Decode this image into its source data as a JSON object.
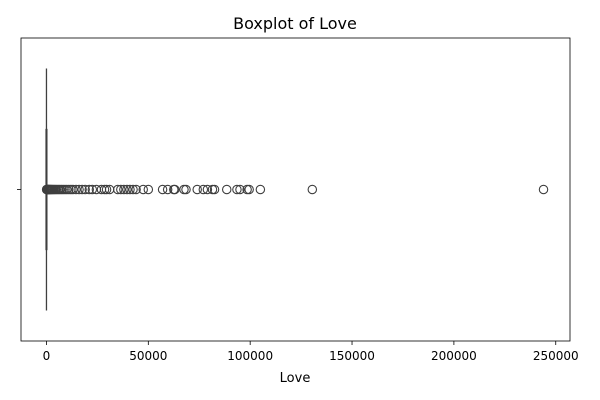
{
  "chart_data": {
    "type": "boxplot",
    "title": "Boxplot of Love",
    "xlabel": "Love",
    "ylabel": "",
    "orientation": "horizontal",
    "xlim": [
      -12500,
      257000
    ],
    "x_ticks": [
      0,
      50000,
      100000,
      150000,
      200000,
      250000
    ],
    "x_tick_labels": [
      "0",
      "50000",
      "100000",
      "150000",
      "200000",
      "250000"
    ],
    "grid": false,
    "colors": {
      "box_edge": "#3f3f3f",
      "box_fill": "#1f77b4",
      "frame": "#000000"
    },
    "summary": {
      "min": 0,
      "q1": 0,
      "median": 0,
      "q3": 0,
      "whisker_low": 0,
      "whisker_high": 0
    },
    "outliers": [
      80,
      150,
      250,
      400,
      550,
      700,
      900,
      1100,
      1300,
      1600,
      1900,
      2200,
      2600,
      3000,
      3500,
      4000,
      4600,
      5200,
      5900,
      6600,
      7400,
      8200,
      9100,
      10000,
      11000,
      12000,
      13000,
      14500,
      16000,
      17500,
      19000,
      21000,
      22500,
      24500,
      27000,
      28500,
      29500,
      31000,
      35000,
      36500,
      38000,
      39500,
      41000,
      42500,
      44000,
      47500,
      50000,
      57000,
      59500,
      62500,
      63000,
      67500,
      68500,
      74000,
      77000,
      79000,
      81500,
      82500,
      88500,
      93500,
      95000,
      98500,
      99500,
      105000,
      130500,
      244000
    ]
  }
}
